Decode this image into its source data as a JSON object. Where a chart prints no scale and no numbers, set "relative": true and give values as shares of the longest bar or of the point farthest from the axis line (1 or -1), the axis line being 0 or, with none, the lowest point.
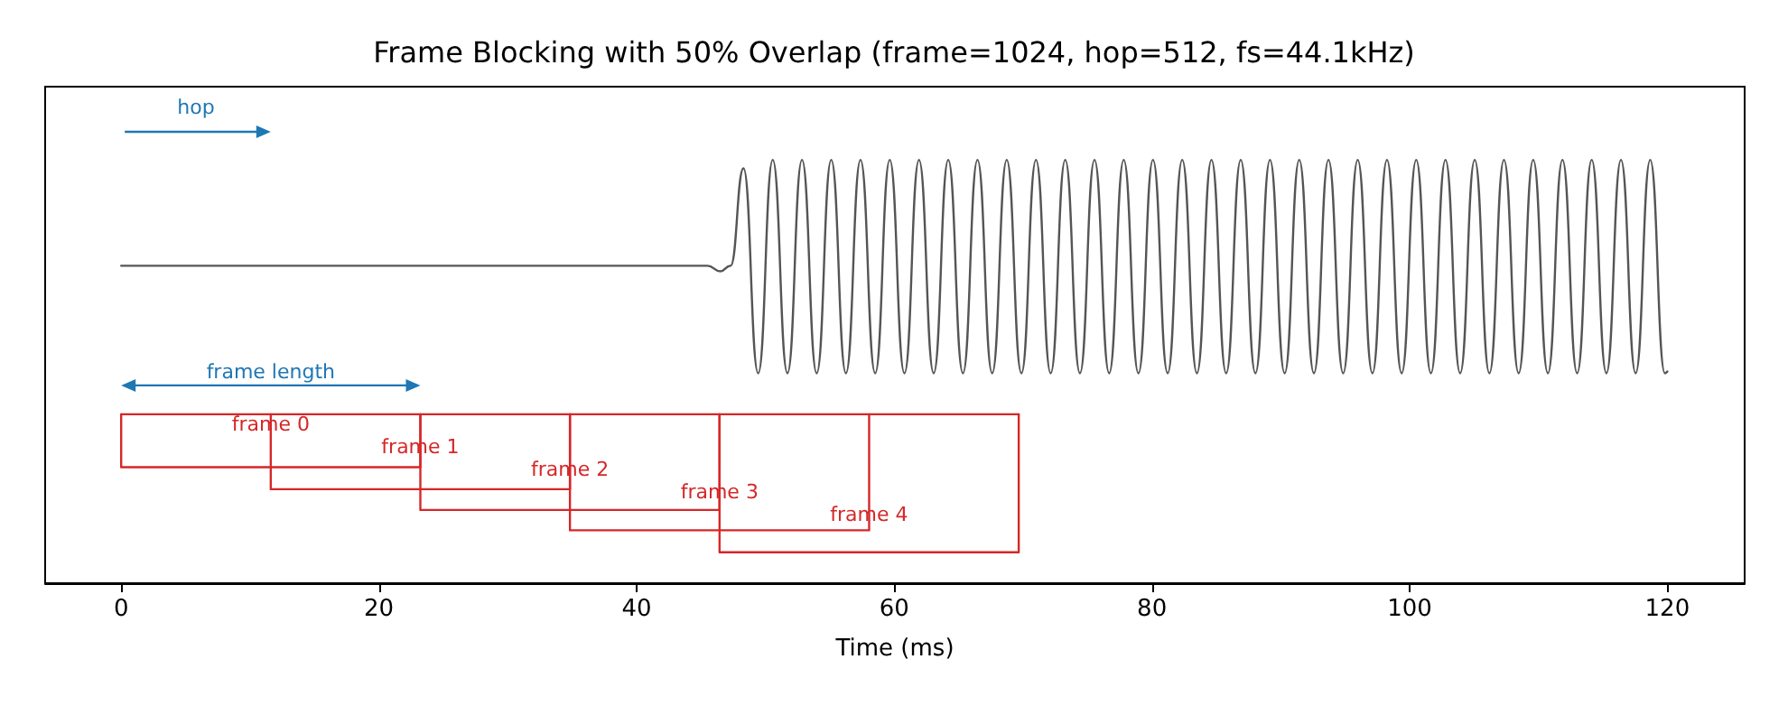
{
  "chart_data": {
    "type": "line",
    "title": "Frame Blocking with 50% Overlap (frame=1024, hop=512, fs=44.1kHz)",
    "xlabel": "Time (ms)",
    "relative": true,
    "xlim": [
      -5.9,
      126
    ],
    "xticks": [
      0,
      20,
      40,
      60,
      80,
      100,
      120
    ],
    "tick_labels": "x",
    "grid": false,
    "series": [
      {
        "color": "#555555",
        "x": [
          0,
          45.5,
          46.5,
          47.3,
          48.3,
          49.44,
          50.57,
          51.71,
          52.84,
          53.98,
          55.11,
          56.25,
          57.38,
          58.52,
          59.65,
          60.79,
          61.92,
          63.06,
          64.19,
          65.33,
          66.46,
          67.6,
          68.73,
          69.87,
          71,
          72.14,
          73.27,
          74.41,
          75.54,
          76.68,
          77.81,
          78.95,
          80.08,
          81.22,
          82.35,
          83.49,
          84.62,
          85.76,
          86.89,
          88.03,
          89.16,
          90.3,
          91.43,
          92.57,
          93.7,
          94.84,
          95.97,
          97.11,
          98.24,
          99.38,
          100.51,
          101.65,
          102.78,
          103.92,
          105.05,
          106.19,
          107.32,
          108.46,
          109.59,
          110.73,
          111.86,
          113,
          114.13,
          115.27,
          116.4,
          117.54,
          118.67,
          119.81,
          120
        ],
        "values": [
          0.75,
          0.75,
          0.737,
          0.75,
          0.98,
          0.496,
          1,
          0.496,
          1,
          0.496,
          1,
          0.496,
          1,
          0.496,
          1,
          0.496,
          1,
          0.496,
          1,
          0.496,
          1,
          0.496,
          1,
          0.496,
          1,
          0.496,
          1,
          0.496,
          1,
          0.496,
          1,
          0.496,
          1,
          0.496,
          1,
          0.496,
          1,
          0.496,
          1,
          0.496,
          1,
          0.496,
          1,
          0.496,
          1,
          0.496,
          1,
          0.496,
          1,
          0.496,
          1,
          0.496,
          1,
          0.496,
          1,
          0.496,
          1,
          0.496,
          1,
          0.496,
          1,
          0.496,
          1,
          0.496,
          1,
          0.496,
          1,
          0.496,
          0.5
        ]
      },
      {
        "color": "#d62728",
        "x": [
          0,
          0,
          23.22,
          23.22
        ],
        "values": [
          0.399,
          0.274,
          0.274,
          0.399
        ]
      },
      {
        "color": "#d62728",
        "x": [
          11.61,
          11.61,
          34.83,
          34.83
        ],
        "values": [
          0.399,
          0.222,
          0.222,
          0.399
        ]
      },
      {
        "color": "#d62728",
        "x": [
          23.22,
          23.22,
          46.44,
          46.44
        ],
        "values": [
          0.399,
          0.173,
          0.173,
          0.399
        ]
      },
      {
        "color": "#d62728",
        "x": [
          34.83,
          34.83,
          58.05,
          58.05
        ],
        "values": [
          0.399,
          0.125,
          0.125,
          0.399
        ]
      },
      {
        "color": "#d62728",
        "x": [
          46.44,
          46.44,
          69.66,
          69.66
        ],
        "values": [
          0.399,
          0.073,
          0.073,
          0.399
        ]
      },
      {
        "color": "#d62728",
        "x": [
          0,
          69.66
        ],
        "values": [
          0.399,
          0.399
        ]
      }
    ],
    "annotations": [
      "hop",
      "frame length",
      "frame 0",
      "frame 1",
      "frame 2",
      "frame 3",
      "frame 4"
    ]
  }
}
